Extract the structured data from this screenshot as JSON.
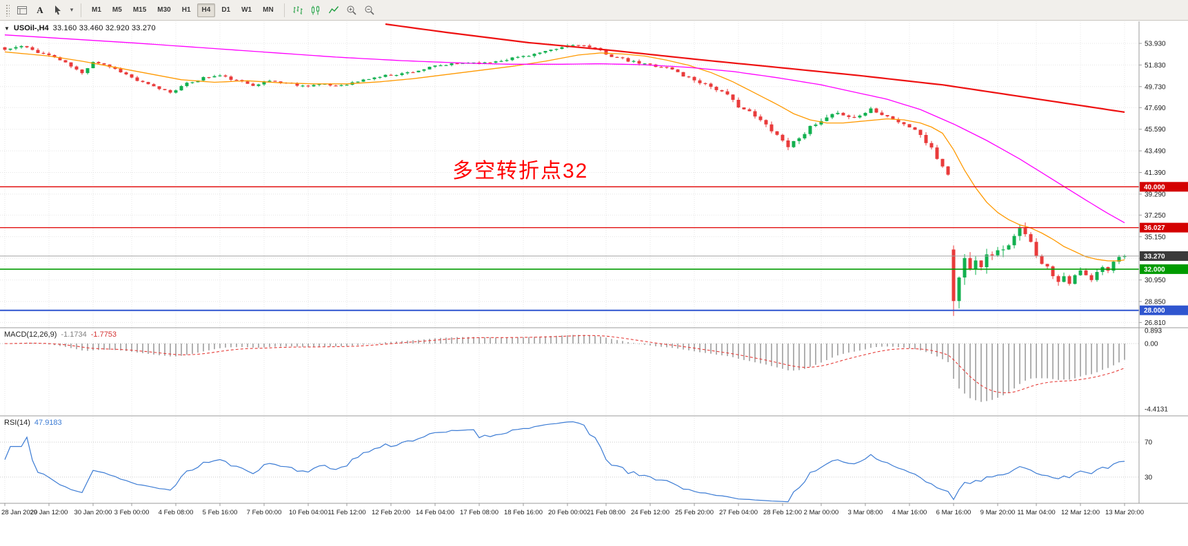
{
  "toolbar": {
    "text_tool_label": "A",
    "timeframes": [
      "M1",
      "M5",
      "M15",
      "M30",
      "H1",
      "H4",
      "D1",
      "W1",
      "MN"
    ],
    "active_timeframe": "H4",
    "icons": [
      "chart-window-icon",
      "cursor-icon",
      "chevron-down-icon",
      "bars-chart-icon",
      "candlestick-chart-icon",
      "line-chart-icon",
      "zoom-in-icon",
      "zoom-out-icon"
    ]
  },
  "chart_header": {
    "symbol_period": "USOil-,H4",
    "ohlc": "33.160 33.460 32.920 33.270"
  },
  "main_chart": {
    "annotation": "多空转折点32"
  },
  "indicators": {
    "macd": {
      "name": "MACD(12,26,9)",
      "main_value": "-1.1734",
      "signal_value": "-1.7753",
      "axis_labels": [
        "0.893",
        "0.00",
        "-4.4131"
      ]
    },
    "rsi": {
      "name": "RSI(14)",
      "value": "47.9183",
      "level_labels": [
        "70",
        "30"
      ]
    }
  },
  "price_axis": {
    "labels": [
      "53.930",
      "51.830",
      "49.730",
      "47.690",
      "45.590",
      "43.490",
      "41.390",
      "39.290",
      "37.250",
      "35.150",
      "33.050",
      "30.950",
      "28.850",
      "26.810"
    ]
  },
  "chart_data": {
    "type": "candlestick",
    "symbol": "USOil-",
    "timeframe": "H4",
    "display_ohlc": {
      "open": "33.160",
      "high": "33.460",
      "low": "32.920",
      "close": "33.270"
    },
    "candle_count": 204,
    "last_close": 33.27,
    "seed": 11,
    "close_path": [
      [
        0,
        53.3
      ],
      [
        3,
        53.65
      ],
      [
        6,
        53.1
      ],
      [
        9,
        52.6
      ],
      [
        12,
        51.7
      ],
      [
        14,
        51.0
      ],
      [
        16,
        52.2
      ],
      [
        18,
        51.9
      ],
      [
        21,
        51.2
      ],
      [
        24,
        50.3
      ],
      [
        27,
        49.7
      ],
      [
        30,
        49.2
      ],
      [
        33,
        50.0
      ],
      [
        36,
        50.6
      ],
      [
        39,
        50.8
      ],
      [
        42,
        50.3
      ],
      [
        45,
        49.9
      ],
      [
        48,
        50.3
      ],
      [
        51,
        50.1
      ],
      [
        54,
        49.8
      ],
      [
        57,
        49.95
      ],
      [
        60,
        49.8
      ],
      [
        63,
        50.1
      ],
      [
        66,
        50.5
      ],
      [
        69,
        50.8
      ],
      [
        72,
        51.0
      ],
      [
        75,
        51.3
      ],
      [
        78,
        51.7
      ],
      [
        81,
        51.9
      ],
      [
        84,
        52.1
      ],
      [
        87,
        52.0
      ],
      [
        90,
        52.3
      ],
      [
        93,
        52.6
      ],
      [
        96,
        52.9
      ],
      [
        99,
        53.2
      ],
      [
        102,
        53.7
      ],
      [
        104,
        53.85
      ],
      [
        106,
        53.5
      ],
      [
        108,
        53.2
      ],
      [
        110,
        52.7
      ],
      [
        113,
        52.2
      ],
      [
        116,
        51.9
      ],
      [
        119,
        51.7
      ],
      [
        121,
        51.4
      ],
      [
        123,
        50.8
      ],
      [
        125,
        50.4
      ],
      [
        127,
        50.0
      ],
      [
        129,
        49.5
      ],
      [
        131,
        48.8
      ],
      [
        133,
        47.9
      ],
      [
        135,
        47.2
      ],
      [
        137,
        46.4
      ],
      [
        139,
        45.6
      ],
      [
        141,
        44.5
      ],
      [
        142,
        44.0
      ],
      [
        143,
        44.3
      ],
      [
        144,
        44.9
      ],
      [
        146,
        45.7
      ],
      [
        148,
        46.3
      ],
      [
        150,
        46.9
      ],
      [
        152,
        47.1
      ],
      [
        154,
        46.7
      ],
      [
        156,
        47.2
      ],
      [
        157,
        47.6
      ],
      [
        159,
        47.1
      ],
      [
        161,
        46.6
      ],
      [
        163,
        46.0
      ],
      [
        165,
        45.6
      ],
      [
        166,
        45.0
      ],
      [
        167,
        44.3
      ],
      [
        168,
        43.6
      ],
      [
        169,
        42.8
      ],
      [
        170,
        42.0
      ],
      [
        171,
        41.3
      ],
      [
        172,
        28.9
      ],
      [
        173,
        31.4
      ],
      [
        174,
        33.0
      ],
      [
        175,
        31.8
      ],
      [
        176,
        33.4
      ],
      [
        177,
        32.6
      ],
      [
        178,
        33.8
      ],
      [
        179,
        33.0
      ],
      [
        180,
        34.2
      ],
      [
        181,
        33.6
      ],
      [
        182,
        34.6
      ],
      [
        183,
        35.1
      ],
      [
        184,
        35.7
      ],
      [
        185,
        35.2
      ],
      [
        186,
        34.4
      ],
      [
        187,
        33.6
      ],
      [
        188,
        32.8
      ],
      [
        189,
        32.1
      ],
      [
        190,
        31.5
      ],
      [
        191,
        31.0
      ],
      [
        192,
        31.4
      ],
      [
        193,
        30.8
      ],
      [
        194,
        31.2
      ],
      [
        195,
        31.8
      ],
      [
        196,
        31.3
      ],
      [
        197,
        30.9
      ],
      [
        198,
        31.6
      ],
      [
        199,
        32.1
      ],
      [
        200,
        31.9
      ],
      [
        201,
        32.6
      ],
      [
        202,
        33.3
      ],
      [
        203,
        33.27
      ]
    ],
    "volatility": [
      [
        0,
        0.5
      ],
      [
        40,
        0.42
      ],
      [
        80,
        0.42
      ],
      [
        104,
        0.5
      ],
      [
        120,
        0.6
      ],
      [
        135,
        0.8
      ],
      [
        143,
        0.9
      ],
      [
        160,
        0.6
      ],
      [
        168,
        0.9
      ],
      [
        171,
        1.0
      ],
      [
        172,
        2.4
      ],
      [
        178,
        2.2
      ],
      [
        184,
        1.7
      ],
      [
        190,
        1.3
      ],
      [
        196,
        1.0
      ],
      [
        203,
        0.85
      ]
    ],
    "special_candles": {
      "172": {
        "o": 33.9,
        "h": 34.3,
        "l": 27.45,
        "c": 28.9
      },
      "184": {
        "h": 36.35
      }
    },
    "moving_averages": [
      {
        "name": "ma-fast",
        "color": "#ff9900",
        "width": 1.3,
        "points": [
          [
            0,
            53.1
          ],
          [
            8,
            52.7
          ],
          [
            14,
            52.2
          ],
          [
            20,
            51.6
          ],
          [
            26,
            51.0
          ],
          [
            32,
            50.4
          ],
          [
            38,
            50.15
          ],
          [
            44,
            50.3
          ],
          [
            50,
            50.1
          ],
          [
            56,
            50.0
          ],
          [
            62,
            50.0
          ],
          [
            68,
            50.2
          ],
          [
            74,
            50.5
          ],
          [
            80,
            50.9
          ],
          [
            86,
            51.3
          ],
          [
            92,
            51.7
          ],
          [
            98,
            52.2
          ],
          [
            104,
            52.8
          ],
          [
            108,
            53.0
          ],
          [
            112,
            52.9
          ],
          [
            116,
            52.7
          ],
          [
            120,
            52.3
          ],
          [
            124,
            51.8
          ],
          [
            128,
            51.1
          ],
          [
            132,
            50.2
          ],
          [
            136,
            49.1
          ],
          [
            140,
            48.0
          ],
          [
            143,
            47.1
          ],
          [
            146,
            46.5
          ],
          [
            149,
            46.2
          ],
          [
            152,
            46.2
          ],
          [
            156,
            46.4
          ],
          [
            160,
            46.6
          ],
          [
            163,
            46.5
          ],
          [
            166,
            46.2
          ],
          [
            168,
            45.8
          ],
          [
            170,
            45.2
          ],
          [
            172,
            43.6
          ],
          [
            174,
            41.6
          ],
          [
            176,
            39.9
          ],
          [
            178,
            38.5
          ],
          [
            180,
            37.5
          ],
          [
            182,
            36.8
          ],
          [
            184,
            36.3
          ],
          [
            186,
            36.0
          ],
          [
            188,
            35.5
          ],
          [
            190,
            34.9
          ],
          [
            192,
            34.2
          ],
          [
            194,
            33.7
          ],
          [
            196,
            33.2
          ],
          [
            198,
            32.95
          ],
          [
            200,
            32.8
          ],
          [
            202,
            32.8
          ],
          [
            203,
            32.9
          ]
        ]
      },
      {
        "name": "ma-mid",
        "color": "#ff00ff",
        "width": 1.3,
        "points": [
          [
            0,
            54.75
          ],
          [
            12,
            54.35
          ],
          [
            24,
            53.95
          ],
          [
            36,
            53.5
          ],
          [
            48,
            53.05
          ],
          [
            60,
            52.6
          ],
          [
            72,
            52.25
          ],
          [
            84,
            52.0
          ],
          [
            92,
            51.9
          ],
          [
            100,
            51.9
          ],
          [
            108,
            51.95
          ],
          [
            116,
            51.85
          ],
          [
            124,
            51.6
          ],
          [
            132,
            51.2
          ],
          [
            140,
            50.6
          ],
          [
            148,
            49.9
          ],
          [
            154,
            49.2
          ],
          [
            160,
            48.5
          ],
          [
            166,
            47.5
          ],
          [
            172,
            46.1
          ],
          [
            178,
            44.5
          ],
          [
            184,
            42.7
          ],
          [
            190,
            40.7
          ],
          [
            196,
            38.7
          ],
          [
            200,
            37.4
          ],
          [
            203,
            36.5
          ]
        ]
      },
      {
        "name": "ma-slow",
        "color": "#ee1111",
        "width": 2.2,
        "points": [
          [
            69,
            55.8
          ],
          [
            80,
            55.0
          ],
          [
            95,
            54.0
          ],
          [
            110,
            53.25
          ],
          [
            125,
            52.4
          ],
          [
            140,
            51.6
          ],
          [
            155,
            50.8
          ],
          [
            170,
            49.9
          ],
          [
            185,
            48.7
          ],
          [
            203,
            47.25
          ]
        ]
      }
    ],
    "levels": [
      {
        "price": 40.0,
        "label": "40.000",
        "color": "#e00000",
        "tag": "#d40000",
        "width": 1.3
      },
      {
        "price": 36.027,
        "label": "36.027",
        "color": "#e00000",
        "tag": "#d40000",
        "width": 1.3
      },
      {
        "price": 33.27,
        "label": "33.270",
        "color": "#a0a0a0",
        "tag": "#3a3a3a",
        "width": 1,
        "is_current_price": true
      },
      {
        "price": 32.0,
        "label": "32.000",
        "color": "#009b00",
        "tag": "#009b00",
        "width": 1.6
      },
      {
        "price": 28.0,
        "label": "28.000",
        "color": "#2f55cf",
        "tag": "#2f55cf",
        "width": 2
      }
    ],
    "y_axis": {
      "labels": [
        53.93,
        51.83,
        49.73,
        47.69,
        45.59,
        43.49,
        41.39,
        39.29,
        37.25,
        35.15,
        33.05,
        30.95,
        28.85,
        26.81
      ]
    },
    "x_axis": {
      "labels": [
        "28 Jan 2020",
        "29 Jan 12:00",
        "30 Jan 20:00",
        "3 Feb 00:00",
        "4 Feb 08:00",
        "5 Feb 16:00",
        "7 Feb 00:00",
        "10 Feb 04:00",
        "11 Feb 12:00",
        "12 Feb 20:00",
        "14 Feb 04:00",
        "17 Feb 08:00",
        "18 Feb 16:00",
        "20 Feb 00:00",
        "21 Feb 08:00",
        "24 Feb 12:00",
        "25 Feb 20:00",
        "27 Feb 04:00",
        "28 Feb 12:00",
        "2 Mar 00:00",
        "3 Mar 08:00",
        "4 Mar 16:00",
        "6 Mar 16:00",
        "9 Mar 20:00",
        "11 Mar 04:00",
        "12 Mar 12:00",
        "13 Mar 20:00"
      ]
    },
    "indicator_scales": {
      "macd_axis": [
        0.893,
        0,
        -4.4131
      ],
      "rsi_levels": [
        70,
        30
      ]
    },
    "colors": {
      "up": "#12b04f",
      "down": "#e93b3b",
      "macd_hist": "#8f8f8f",
      "macd_signal": "#e53935",
      "rsi": "#3b7bd4",
      "grid": "#e4e4e4"
    }
  }
}
